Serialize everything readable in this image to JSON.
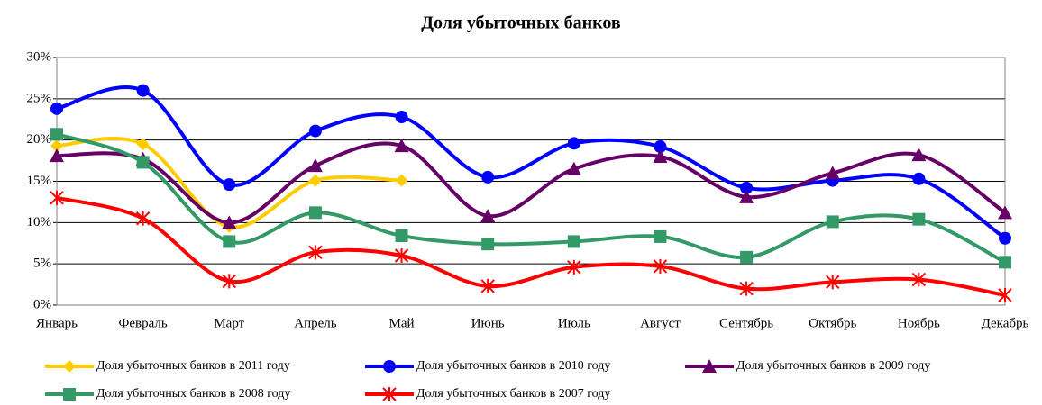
{
  "chart_data": {
    "type": "line",
    "title": "Доля убыточных банков",
    "categories": [
      "Январь",
      "Февраль",
      "Март",
      "Апрель",
      "Май",
      "Июнь",
      "Июль",
      "Август",
      "Сентябрь",
      "Октябрь",
      "Ноябрь",
      "Декабрь"
    ],
    "series": [
      {
        "name": "Доля убыточных банков в 2011 году",
        "color": "#ffcc00",
        "marker": "diamond",
        "values": [
          19.3,
          19.5,
          9.5,
          15.1,
          15.1,
          null,
          null,
          null,
          null,
          null,
          null,
          null
        ]
      },
      {
        "name": "Доля убыточных банков в 2010 году",
        "color": "#0000ff",
        "marker": "circle",
        "values": [
          23.8,
          26.0,
          14.6,
          21.1,
          22.8,
          15.5,
          19.6,
          19.2,
          14.2,
          15.1,
          15.3,
          8.1
        ]
      },
      {
        "name": "Доля убыточных банков в 2009 году",
        "color": "#660066",
        "marker": "triangle",
        "values": [
          18.1,
          17.7,
          10.0,
          16.9,
          19.3,
          10.8,
          16.5,
          18.0,
          13.1,
          16.0,
          18.2,
          11.2
        ]
      },
      {
        "name": "Доля убыточных банков в 2008 году",
        "color": "#339966",
        "marker": "square",
        "values": [
          20.7,
          17.3,
          7.7,
          11.2,
          8.4,
          7.4,
          7.7,
          8.3,
          5.8,
          10.1,
          10.4,
          5.2
        ]
      },
      {
        "name": "Доля убыточных банков в 2007 году",
        "color": "#ff0000",
        "marker": "star",
        "values": [
          13.0,
          10.5,
          2.9,
          6.4,
          6.0,
          2.3,
          4.6,
          4.7,
          2.0,
          2.8,
          3.1,
          1.2
        ]
      }
    ],
    "ylim": [
      0,
      30
    ],
    "yticks": [
      {
        "value": 0,
        "label": "0%"
      },
      {
        "value": 5,
        "label": "5%"
      },
      {
        "value": 10,
        "label": "10%"
      },
      {
        "value": 15,
        "label": "15%"
      },
      {
        "value": 20,
        "label": "20%"
      },
      {
        "value": 25,
        "label": "25%"
      },
      {
        "value": 30,
        "label": "30%"
      }
    ],
    "grid": true,
    "smooth": true,
    "legend": "bottom"
  }
}
